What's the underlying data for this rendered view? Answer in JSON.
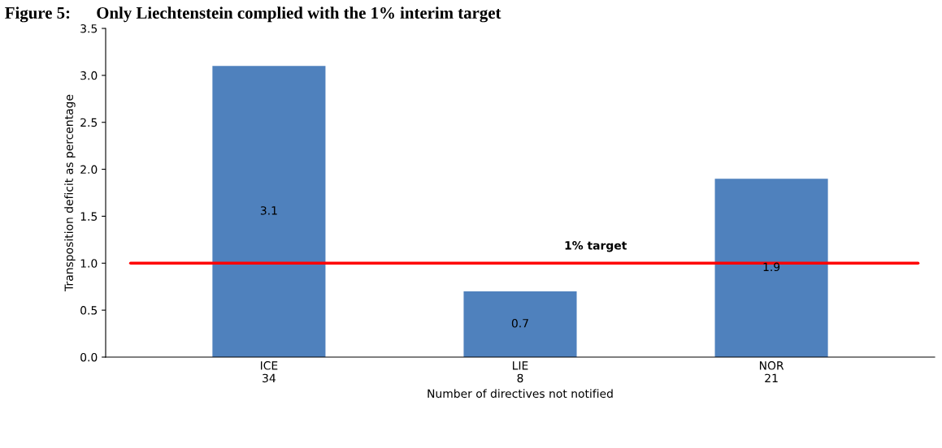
{
  "chart_data": {
    "type": "bar",
    "title": "Figure 5:      Only Liechtenstein complied with the 1% interim target",
    "xlabel": "Number of directives not notified",
    "ylabel": "Transposition deficit as percentage",
    "categories": [
      "ICE\n34",
      "LIE\n8",
      "NOR\n21"
    ],
    "values": [
      3.1,
      0.7,
      1.9
    ],
    "color": "#4f81bd",
    "data_labels": true,
    "ylim": [
      0,
      3.5
    ],
    "yticks": [
      {
        "value": 0,
        "label": "0.0"
      },
      {
        "value": 0.5,
        "label": "0.5"
      },
      {
        "value": 1,
        "label": "1.0"
      },
      {
        "value": 1.5,
        "label": "1.5"
      },
      {
        "value": 2,
        "label": "2.0"
      },
      {
        "value": 2.5,
        "label": "2.5"
      },
      {
        "value": 3,
        "label": "3.0"
      },
      {
        "value": 3.5,
        "label": "3.5"
      }
    ],
    "ref_lines": [
      {
        "axis": "y",
        "value": 1,
        "label": "1% target",
        "color": "#ff0000",
        "line_style": "solid"
      }
    ],
    "grid": false
  }
}
